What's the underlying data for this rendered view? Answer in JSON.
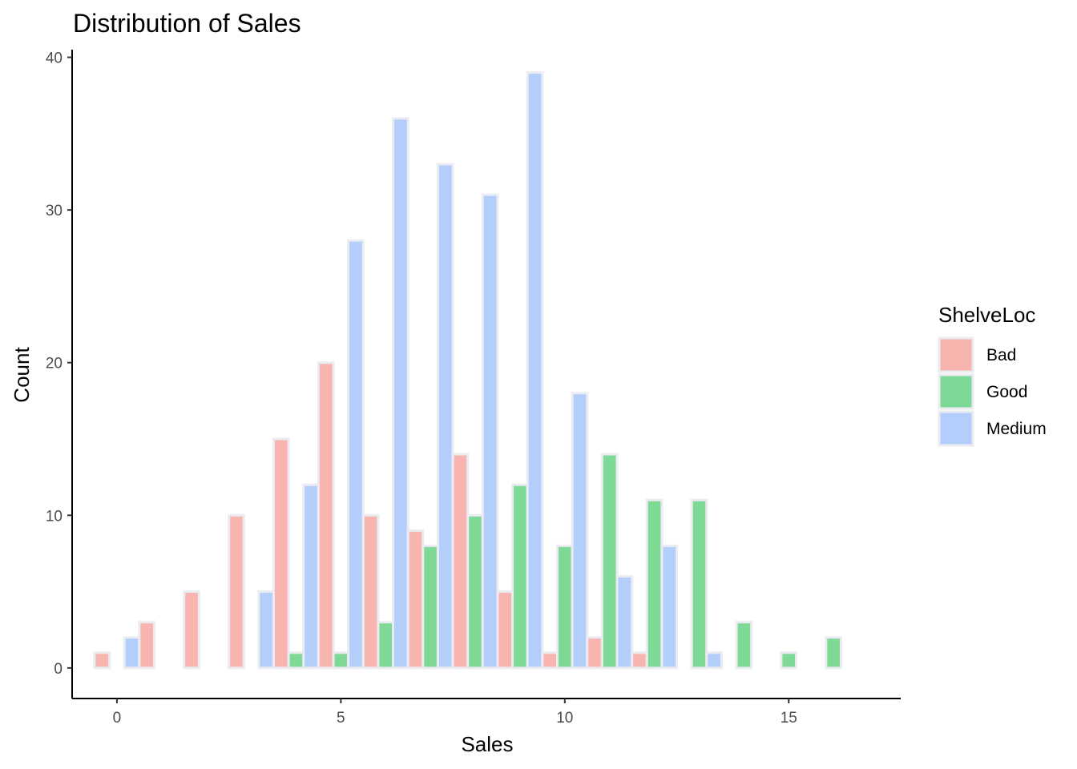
{
  "chart_data": {
    "type": "bar",
    "title": "Distribution of Sales",
    "xlabel": "Sales",
    "ylabel": "Count",
    "xlim": [
      -1,
      17.5
    ],
    "ylim": [
      -2,
      40.5
    ],
    "x_ticks": [
      0,
      5,
      10,
      15
    ],
    "y_ticks": [
      0,
      10,
      20,
      30,
      40
    ],
    "grid": false,
    "legend": {
      "title": "ShelveLoc",
      "position": "right"
    },
    "bin_width": 1,
    "bin_centers": [
      0,
      1,
      2,
      3,
      4,
      5,
      6,
      7,
      8,
      9,
      10,
      11,
      12,
      13,
      14,
      15,
      16
    ],
    "series": [
      {
        "name": "Bad",
        "color": "#F8B4AF",
        "values": [
          1,
          3,
          5,
          10,
          15,
          20,
          10,
          9,
          14,
          5,
          1,
          2,
          1,
          0,
          0,
          0,
          0
        ]
      },
      {
        "name": "Good",
        "color": "#7FD996",
        "values": [
          0,
          0,
          0,
          0,
          1,
          1,
          3,
          8,
          10,
          12,
          8,
          14,
          11,
          11,
          3,
          1,
          2
        ]
      },
      {
        "name": "Medium",
        "color": "#B3CEFB",
        "values": [
          2,
          0,
          0,
          5,
          12,
          28,
          36,
          33,
          31,
          39,
          18,
          6,
          8,
          1,
          0,
          0,
          0
        ]
      }
    ]
  }
}
